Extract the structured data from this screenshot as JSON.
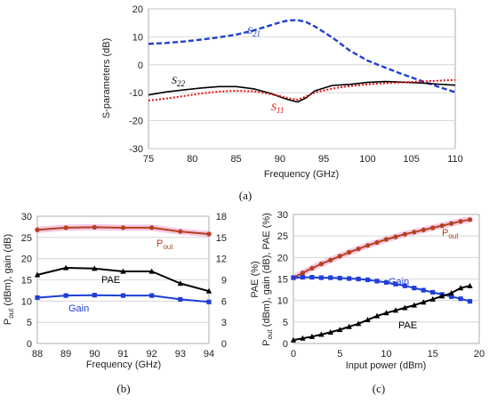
{
  "chart_data": [
    {
      "id": "a",
      "type": "line",
      "caption": "(a)",
      "xlabel": "Frequency (GHz)",
      "ylabel": "S-parameters (dB)",
      "xlim": [
        75,
        110
      ],
      "ylim": [
        -30,
        20
      ],
      "xticks": [
        "75",
        "80",
        "85",
        "90",
        "95",
        "100",
        "105",
        "110"
      ],
      "yticks": [
        "-30",
        "-20",
        "-10",
        "0",
        "10",
        "20"
      ],
      "series": [
        {
          "name": "S21",
          "sub": "21",
          "color": "#1f3fd6",
          "style": "dashed",
          "x": [
            75,
            77,
            79,
            81,
            83,
            85,
            87,
            89,
            90,
            91,
            92,
            93,
            94,
            96,
            98,
            100,
            102,
            104,
            106,
            108,
            110
          ],
          "y": [
            7.5,
            7.8,
            8.3,
            9.0,
            9.8,
            10.8,
            12.3,
            14.2,
            15.2,
            15.9,
            16.0,
            15.3,
            13.7,
            9.7,
            5.0,
            1.5,
            -1.0,
            -3.4,
            -5.6,
            -7.8,
            -9.8
          ]
        },
        {
          "name": "S22",
          "sub": "22",
          "color": "#000000",
          "style": "solid",
          "x": [
            75,
            77,
            79,
            81,
            83,
            85,
            87,
            89,
            90,
            91,
            92,
            93,
            94,
            96,
            98,
            100,
            102,
            104,
            106,
            108,
            110
          ],
          "y": [
            -10.8,
            -9.7,
            -9.0,
            -8.3,
            -7.8,
            -7.8,
            -8.6,
            -10.3,
            -11.5,
            -12.5,
            -13.3,
            -11.8,
            -9.3,
            -7.4,
            -7.0,
            -6.3,
            -6.0,
            -6.2,
            -6.5,
            -6.9,
            -7.3
          ]
        },
        {
          "name": "S11",
          "sub": "11",
          "color": "#e01010",
          "style": "dotted",
          "x": [
            75,
            77,
            79,
            81,
            83,
            85,
            87,
            89,
            90,
            91,
            92,
            93,
            94,
            96,
            98,
            100,
            102,
            104,
            106,
            108,
            110
          ],
          "y": [
            -12.8,
            -12.1,
            -11.2,
            -10.3,
            -9.6,
            -9.3,
            -9.5,
            -10.5,
            -11.2,
            -12.0,
            -12.5,
            -11.3,
            -9.9,
            -8.5,
            -7.6,
            -7.0,
            -6.6,
            -6.3,
            -6.0,
            -5.7,
            -5.4
          ]
        }
      ]
    },
    {
      "id": "b",
      "type": "line",
      "caption": "(b)",
      "xlabel": "Frequency (GHz)",
      "ylabel": "P_out (dBm), gain (dB)",
      "ylabel_right": "PAE (%)",
      "xlim": [
        88,
        94
      ],
      "ylim": [
        0,
        30
      ],
      "ylim_right": [
        0,
        18
      ],
      "xticks": [
        "88",
        "89",
        "90",
        "91",
        "92",
        "93",
        "94"
      ],
      "yticks": [
        "0",
        "5",
        "10",
        "15",
        "20",
        "25",
        "30"
      ],
      "yticks_right": [
        "0",
        "3",
        "6",
        "9",
        "12",
        "15",
        "18"
      ],
      "series": [
        {
          "name": "Pout",
          "label": "P",
          "sub": "out",
          "color": "#b5401e",
          "marker": "circle",
          "axis": "left",
          "x": [
            88,
            89,
            90,
            91,
            92,
            93,
            94
          ],
          "y": [
            26.8,
            27.3,
            27.4,
            27.3,
            27.3,
            26.4,
            25.8
          ]
        },
        {
          "name": "PAE",
          "label": "PAE",
          "color": "#000000",
          "marker": "triangle",
          "axis": "right",
          "x": [
            88,
            89,
            90,
            91,
            92,
            93,
            94
          ],
          "y": [
            9.7,
            10.7,
            10.6,
            10.2,
            10.2,
            8.5,
            7.4
          ]
        },
        {
          "name": "Gain",
          "label": "Gain",
          "color": "#1f3fd6",
          "marker": "square",
          "axis": "left",
          "x": [
            88,
            89,
            90,
            91,
            92,
            93,
            94
          ],
          "y": [
            10.8,
            11.3,
            11.4,
            11.3,
            11.3,
            10.4,
            9.8
          ]
        }
      ]
    },
    {
      "id": "c",
      "type": "line",
      "caption": "(c)",
      "xlabel": "Input power (dBm)",
      "ylabel": "P_out (dBm), gain (dB), PAE (%)",
      "xlim": [
        0,
        20
      ],
      "ylim": [
        0,
        30
      ],
      "xticks": [
        "0",
        "5",
        "10",
        "15",
        "20"
      ],
      "yticks": [
        "0",
        "5",
        "10",
        "15",
        "20",
        "25",
        "30"
      ],
      "series": [
        {
          "name": "Pout",
          "label": "P",
          "sub": "out",
          "color": "#b5401e",
          "marker": "circle",
          "x": [
            0,
            1,
            2,
            3,
            4,
            5,
            6,
            7,
            8,
            9,
            10,
            11,
            12,
            13,
            14,
            15,
            16,
            17,
            18,
            19
          ],
          "y": [
            15.3,
            16.4,
            17.5,
            18.5,
            19.4,
            20.3,
            21.2,
            22.0,
            22.8,
            23.5,
            24.2,
            24.8,
            25.4,
            25.9,
            26.4,
            26.9,
            27.4,
            27.9,
            28.4,
            28.8
          ]
        },
        {
          "name": "Gain",
          "label": "Gain",
          "color": "#1f3fd6",
          "marker": "square",
          "x": [
            0,
            1,
            2,
            3,
            4,
            5,
            6,
            7,
            8,
            9,
            10,
            11,
            12,
            13,
            14,
            15,
            16,
            17,
            18,
            19
          ],
          "y": [
            15.3,
            15.4,
            15.4,
            15.3,
            15.3,
            15.2,
            15.1,
            15.0,
            14.8,
            14.5,
            14.2,
            13.8,
            13.4,
            12.9,
            12.4,
            11.9,
            11.4,
            10.9,
            10.4,
            9.8
          ]
        },
        {
          "name": "PAE",
          "label": "PAE",
          "color": "#000000",
          "marker": "triangle",
          "x": [
            0,
            1,
            2,
            3,
            4,
            5,
            6,
            7,
            8,
            9,
            10,
            11,
            12,
            13,
            14,
            15,
            16,
            17,
            18,
            19
          ],
          "y": [
            0.8,
            1.2,
            1.6,
            2.1,
            2.6,
            3.2,
            3.9,
            4.6,
            5.5,
            6.4,
            7.1,
            7.7,
            8.3,
            8.9,
            9.6,
            10.3,
            11.0,
            11.7,
            12.9,
            13.4
          ]
        }
      ]
    }
  ]
}
